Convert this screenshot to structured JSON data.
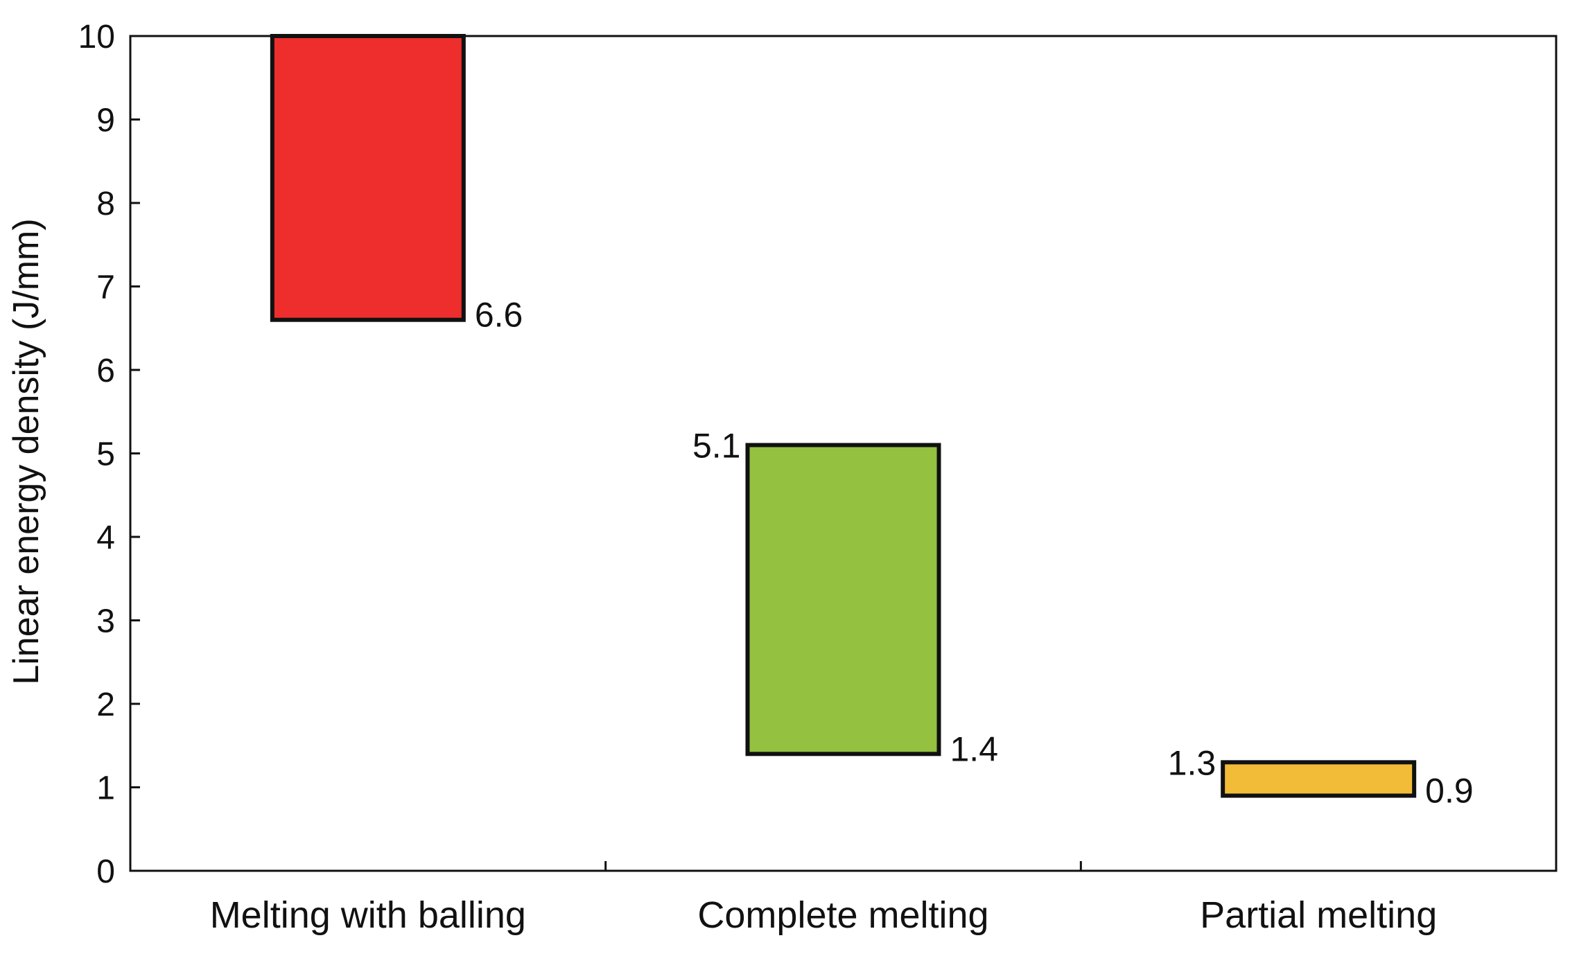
{
  "chart_data": {
    "type": "bar",
    "subtype": "floating-range",
    "title": "",
    "xlabel": "",
    "ylabel": "Linear energy density (J/mm)",
    "ylim": [
      0,
      10
    ],
    "yticks": [
      "0",
      "1",
      "2",
      "3",
      "4",
      "5",
      "6",
      "7",
      "8",
      "9",
      "10"
    ],
    "grid": false,
    "legend": "none",
    "categories": [
      "Melting with balling",
      "Complete melting",
      "Partial melting"
    ],
    "series": [
      {
        "ranges": [
          {
            "low": 6.6,
            "high": 10,
            "color": "#ee2e2d",
            "low_label": "6.6",
            "high_label": ""
          },
          {
            "low": 1.4,
            "high": 5.1,
            "color": "#94c13f",
            "low_label": "1.4",
            "high_label": "5.1"
          },
          {
            "low": 0.9,
            "high": 1.3,
            "color": "#f2bc39",
            "low_label": "0.9",
            "high_label": "1.3"
          }
        ]
      }
    ]
  }
}
